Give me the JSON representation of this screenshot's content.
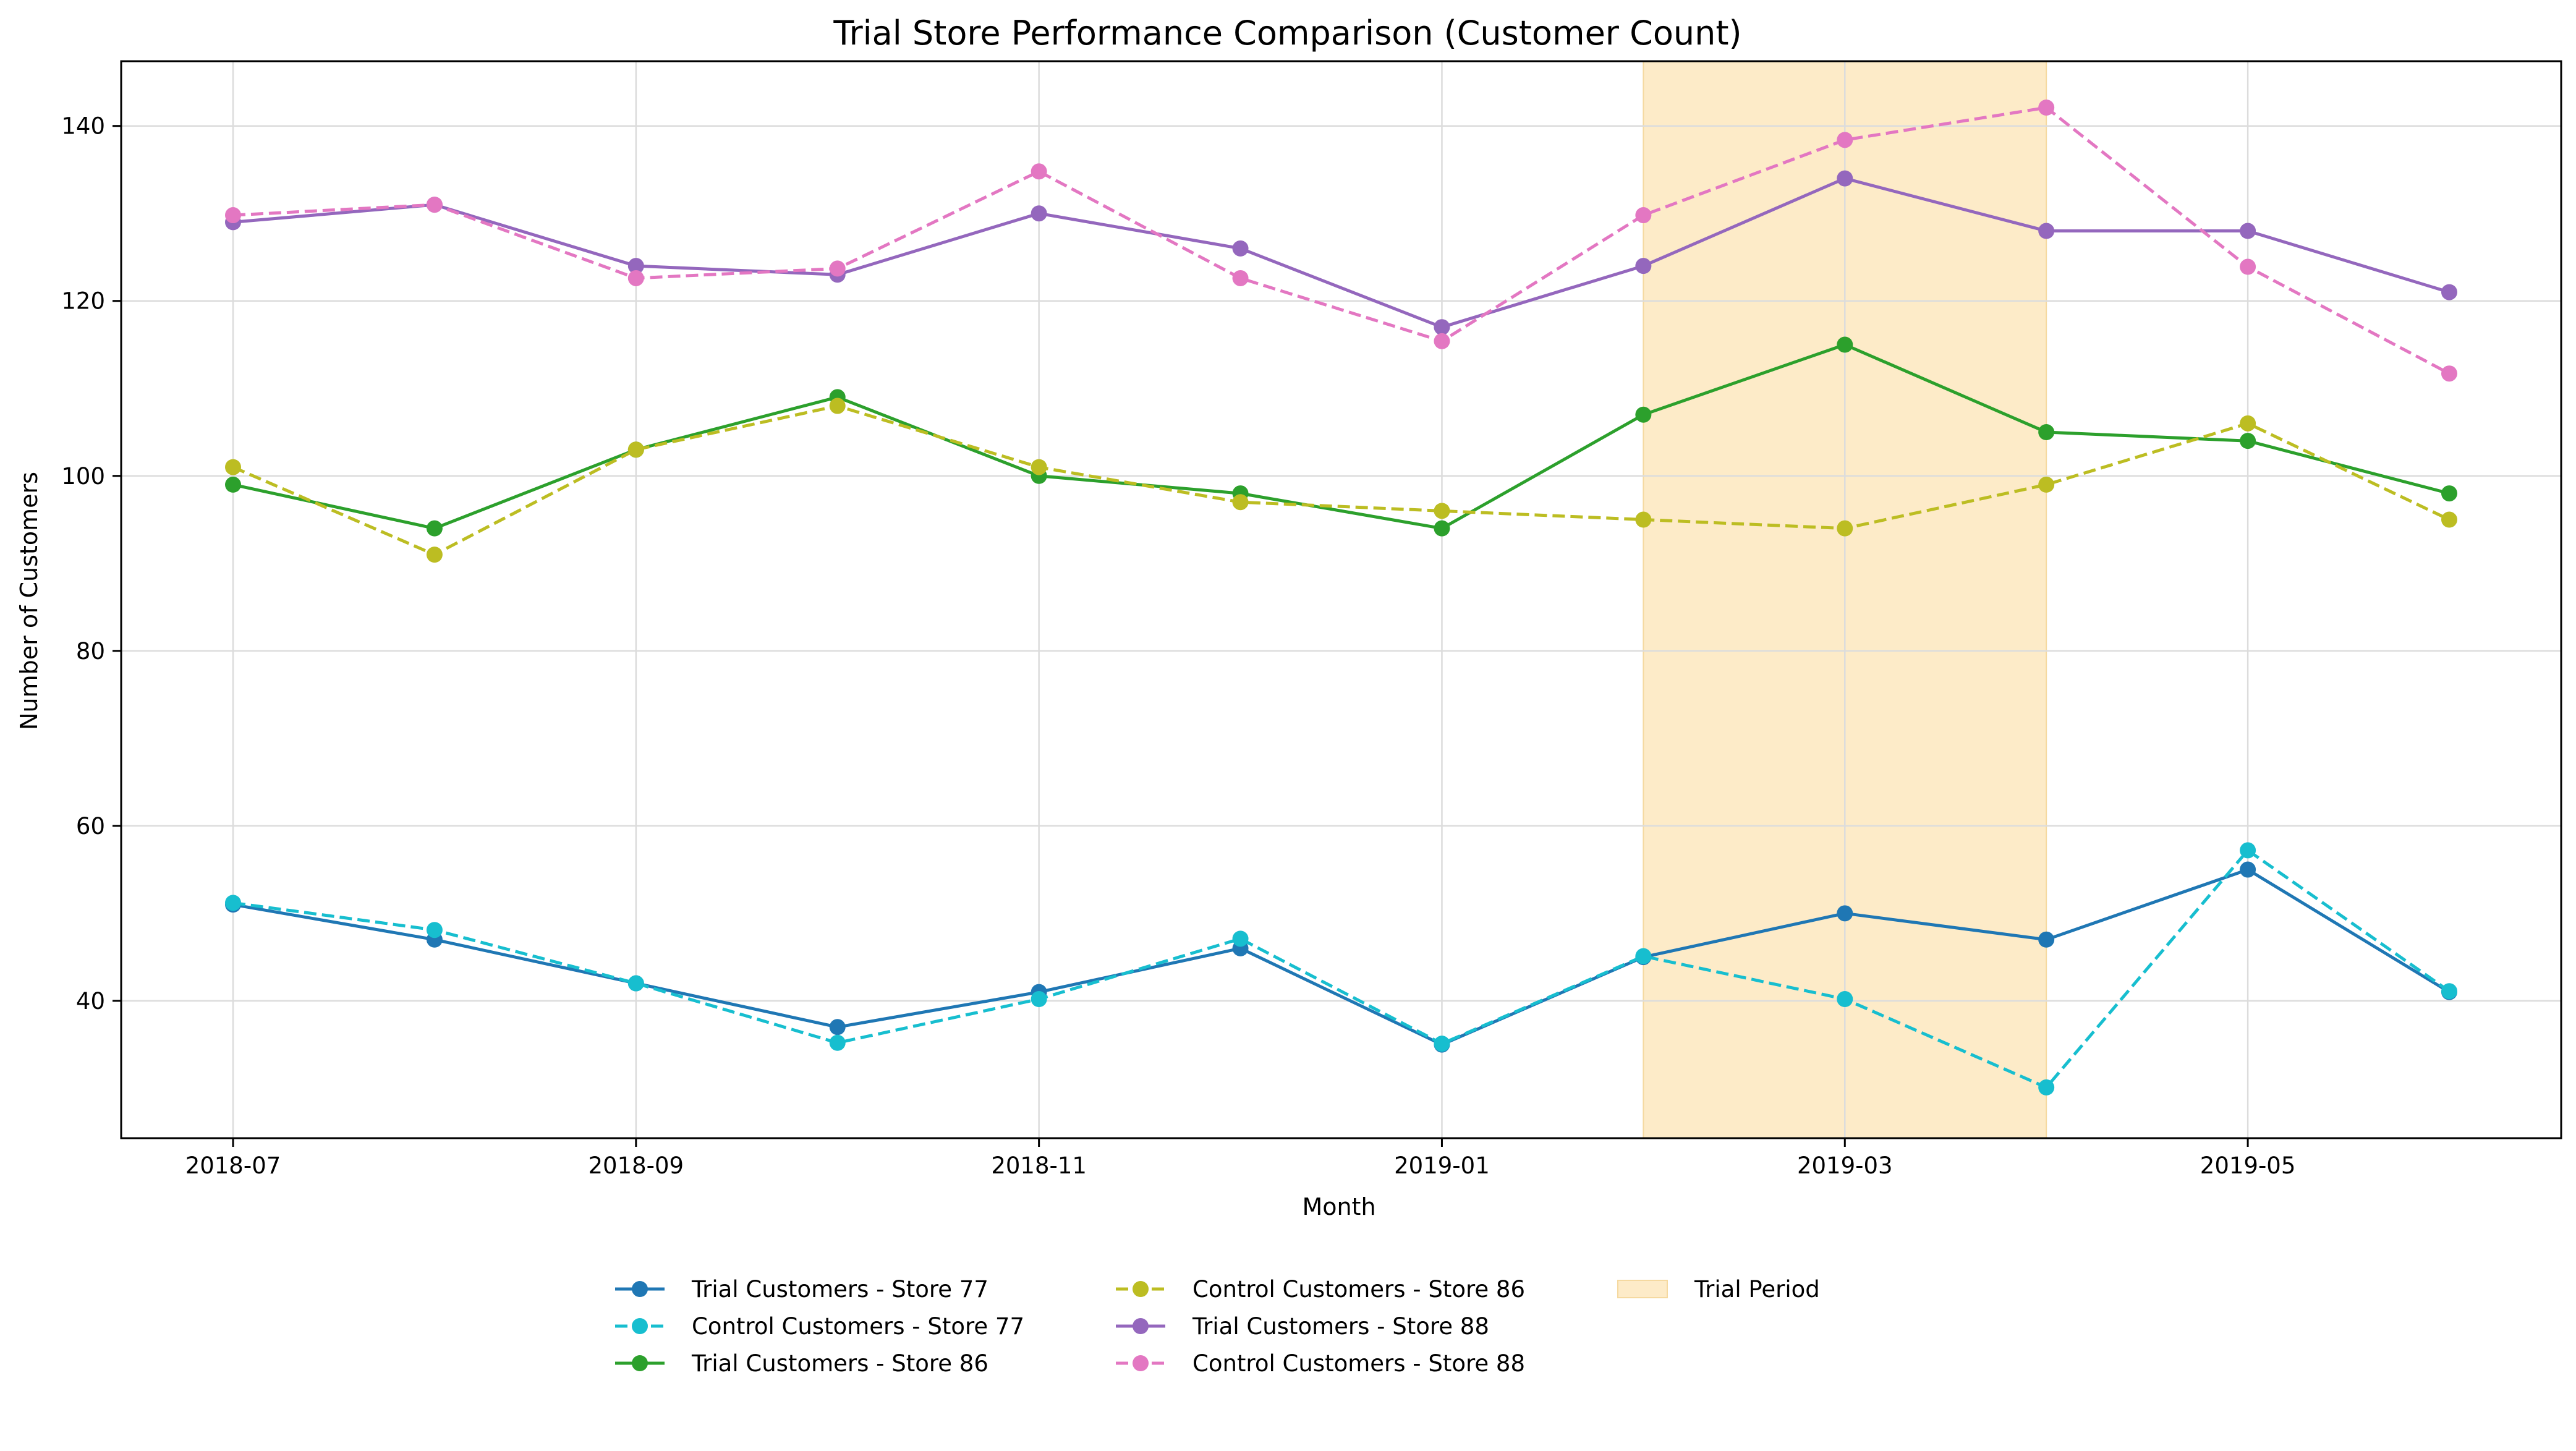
{
  "chart_data": {
    "type": "line",
    "title": "Trial Store Performance Comparison (Customer Count)",
    "xlabel": "Month",
    "ylabel": "Number of Customers",
    "x": [
      "2018-07",
      "2018-08",
      "2018-09",
      "2018-10",
      "2018-11",
      "2018-12",
      "2019-01",
      "2019-02",
      "2019-03",
      "2019-04",
      "2019-05",
      "2019-06"
    ],
    "x_tick_labels": [
      "2018-07",
      "2018-09",
      "2018-11",
      "2019-01",
      "2019-03",
      "2019-05"
    ],
    "ylim": [
      24.3,
      147.4
    ],
    "y_ticks": [
      40,
      60,
      80,
      100,
      120,
      140
    ],
    "grid": true,
    "legend_position": "bottom-center",
    "trial_period": {
      "label": "Trial Period",
      "start": "2019-02",
      "end": "2019-04",
      "color": "#fdebc8"
    },
    "series": [
      {
        "name": "Trial Customers - Store 77",
        "color": "#1f77b4",
        "dash": false,
        "values": [
          51,
          47,
          42,
          37,
          41,
          46,
          35,
          45,
          50,
          47,
          55,
          41
        ]
      },
      {
        "name": "Control Customers - Store 77",
        "color": "#17becf",
        "dash": true,
        "values": [
          51.2,
          48.1,
          42.0,
          35.2,
          40.2,
          47.1,
          35.1,
          45.1,
          40.2,
          30.1,
          57.2,
          41.1
        ]
      },
      {
        "name": "Trial Customers - Store 86",
        "color": "#2ca02c",
        "dash": false,
        "values": [
          99,
          94,
          103,
          109,
          100,
          98,
          94,
          107,
          115,
          105,
          104,
          98
        ]
      },
      {
        "name": "Control Customers - Store 86",
        "color": "#bcbd22",
        "dash": true,
        "values": [
          101,
          91,
          103,
          108,
          101,
          97,
          96,
          95,
          94,
          99,
          106,
          95
        ]
      },
      {
        "name": "Trial Customers - Store 88",
        "color": "#9467bd",
        "dash": false,
        "values": [
          129,
          131,
          124,
          123,
          130,
          126,
          117,
          124,
          134,
          128,
          128,
          121
        ]
      },
      {
        "name": "Control Customers - Store 88",
        "color": "#e377c2",
        "dash": true,
        "values": [
          129.8,
          131.0,
          122.6,
          123.7,
          134.8,
          122.6,
          115.4,
          129.8,
          138.4,
          142.1,
          123.9,
          111.7
        ]
      }
    ]
  }
}
